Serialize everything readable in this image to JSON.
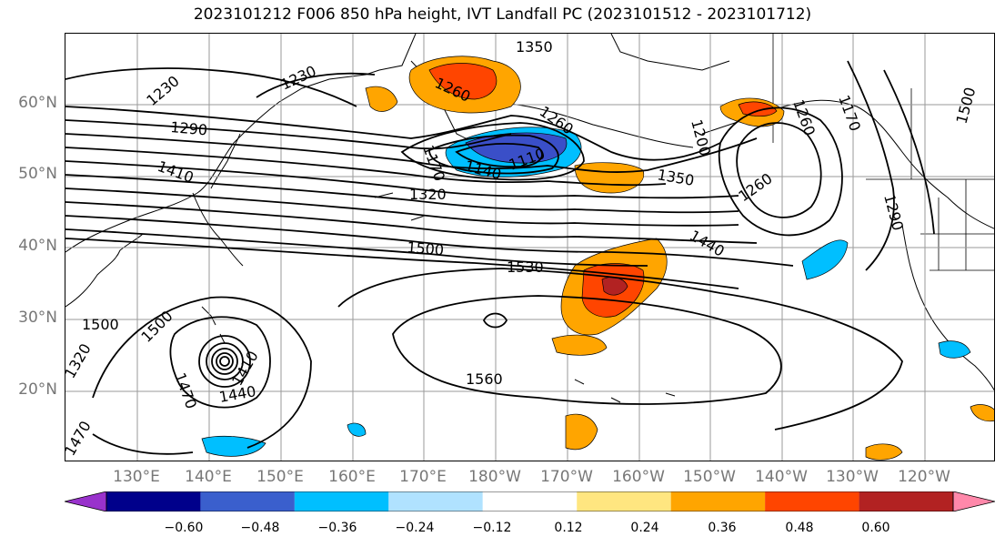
{
  "title": "2023101212 F006 850 hPa height, IVT Landfall PC (2023101512 - 2023101712)",
  "map": {
    "lat_labels": [
      "60°N",
      "50°N",
      "40°N",
      "30°N",
      "20°N"
    ],
    "lon_labels": [
      "130°E",
      "140°E",
      "150°E",
      "160°E",
      "170°E",
      "180°W",
      "170°W",
      "160°W",
      "150°W",
      "140°W",
      "130°W",
      "120°W"
    ],
    "contour_labels": [
      "1350",
      "1260",
      "1230",
      "1230",
      "1290",
      "1410",
      "1320",
      "1140",
      "1110",
      "1170",
      "1260",
      "1350",
      "1260",
      "1500",
      "1440",
      "1500",
      "1530",
      "1560",
      "1500",
      "1470",
      "1440",
      "1410",
      "1260",
      "1170",
      "1200",
      "1290",
      "1320",
      "1500",
      "1470"
    ],
    "colors": {
      "negative_strong": "#3a4fc8",
      "negative_mid": "#00bfff",
      "positive_low": "#ffa500",
      "positive_mid": "#ff4500",
      "positive_high": "#b22222",
      "contour": "#000000"
    }
  },
  "colorbar": {
    "ticks": [
      "−0.60",
      "−0.48",
      "−0.36",
      "−0.24",
      "−0.12",
      "0.12",
      "0.24",
      "0.36",
      "0.48",
      "0.60"
    ],
    "colors": [
      "#9932cc",
      "#00008b",
      "#3a5fcd",
      "#00bfff",
      "#b0e2ff",
      "#ffffff",
      "#ffe680",
      "#ffa500",
      "#ff4500",
      "#b22222",
      "#ff88aa"
    ]
  }
}
